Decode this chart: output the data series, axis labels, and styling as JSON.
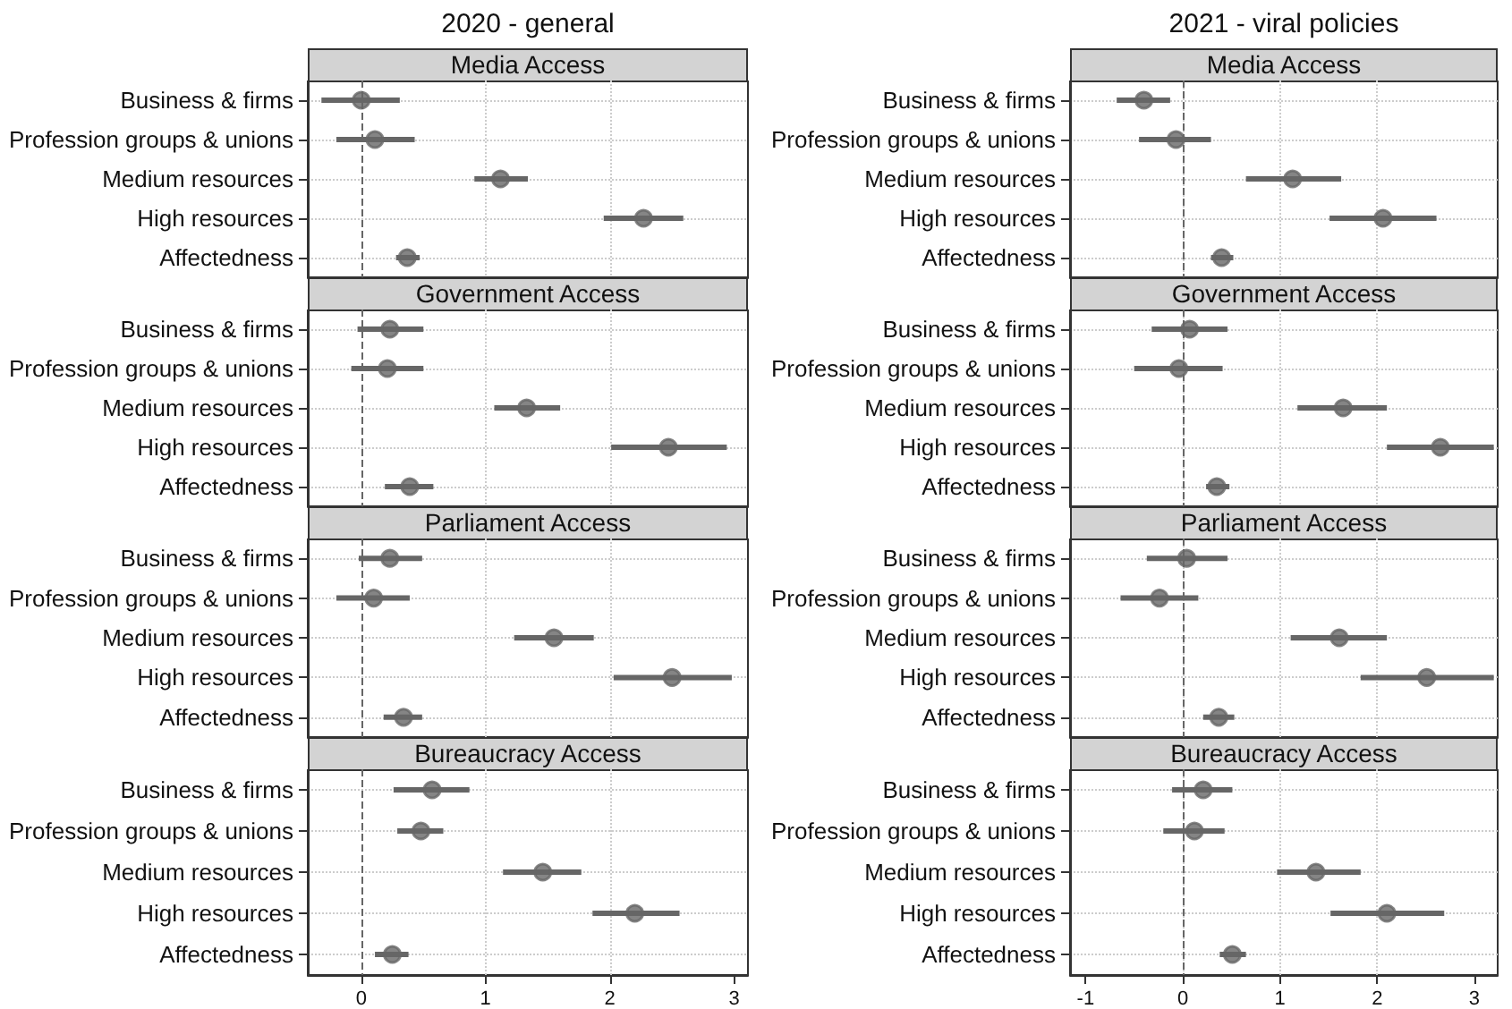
{
  "chart_data": [
    {
      "type": "scatter",
      "title": "2020 - general",
      "subtitle": "Media Access",
      "orientation": "horizontal",
      "categories": [
        "Business & firms",
        "Profession groups & unions",
        "Medium resources",
        "High resources",
        "Affectedness"
      ],
      "values": [
        0.0,
        0.11,
        1.12,
        2.27,
        0.37
      ],
      "errors": [
        [
          -0.32,
          0.31
        ],
        [
          -0.2,
          0.43
        ],
        [
          0.91,
          1.34
        ],
        [
          1.95,
          2.59
        ],
        [
          0.28,
          0.47
        ]
      ],
      "color": "#666666",
      "marker": "circle",
      "xlim": [
        -0.43,
        3.11
      ],
      "xticks": [
        0,
        1,
        2,
        3
      ],
      "tick_labels": "y",
      "grid": true,
      "ref_lines": [
        {
          "axis": "x",
          "value": 0,
          "line_style": "dashed",
          "color": "#666666"
        }
      ]
    },
    {
      "type": "scatter",
      "title": "2021 - viral policies",
      "subtitle": "Media Access",
      "orientation": "horizontal",
      "categories": [
        "Business & firms",
        "Profession groups & unions",
        "Medium resources",
        "High resources",
        "Affectedness"
      ],
      "values": [
        -0.4,
        -0.07,
        1.13,
        2.06,
        0.4
      ],
      "errors": [
        [
          -0.68,
          -0.13
        ],
        [
          -0.45,
          0.29
        ],
        [
          0.65,
          1.63
        ],
        [
          1.51,
          2.61
        ],
        [
          0.29,
          0.52
        ]
      ],
      "color": "#666666",
      "marker": "circle",
      "xlim": [
        -1.16,
        3.24
      ],
      "xticks": [
        -1,
        0,
        1,
        2,
        3
      ],
      "tick_labels": "y",
      "grid": true,
      "ref_lines": [
        {
          "axis": "x",
          "value": 0,
          "line_style": "dashed",
          "color": "#666666"
        }
      ]
    },
    {
      "type": "scatter",
      "title": "Government Access",
      "orientation": "horizontal",
      "categories": [
        "Business & firms",
        "Profession groups & unions",
        "Medium resources",
        "High resources",
        "Affectedness"
      ],
      "values": [
        0.23,
        0.21,
        1.33,
        2.47,
        0.39
      ],
      "errors": [
        [
          -0.03,
          0.5
        ],
        [
          -0.08,
          0.5
        ],
        [
          1.07,
          1.6
        ],
        [
          2.01,
          2.94
        ],
        [
          0.19,
          0.58
        ]
      ],
      "color": "#666666",
      "marker": "circle",
      "xlim": [
        -0.43,
        3.11
      ],
      "xticks": [
        0,
        1,
        2,
        3
      ],
      "tick_labels": "y",
      "grid": true,
      "ref_lines": [
        {
          "axis": "x",
          "value": 0,
          "line_style": "dashed",
          "color": "#666666"
        }
      ]
    },
    {
      "type": "scatter",
      "title": "Government Access",
      "orientation": "horizontal",
      "categories": [
        "Business & firms",
        "Profession groups & unions",
        "Medium resources",
        "High resources",
        "Affectedness"
      ],
      "values": [
        0.07,
        -0.04,
        1.65,
        2.65,
        0.35
      ],
      "errors": [
        [
          -0.32,
          0.46
        ],
        [
          -0.5,
          0.41
        ],
        [
          1.18,
          2.1
        ],
        [
          2.1,
          3.2
        ],
        [
          0.24,
          0.48
        ]
      ],
      "color": "#666666",
      "marker": "circle",
      "xlim": [
        -1.16,
        3.24
      ],
      "xticks": [
        -1,
        0,
        1,
        2,
        3
      ],
      "tick_labels": "y",
      "grid": true,
      "ref_lines": [
        {
          "axis": "x",
          "value": 0,
          "line_style": "dashed",
          "color": "#666666"
        }
      ]
    },
    {
      "type": "scatter",
      "title": "Parliament Access",
      "orientation": "horizontal",
      "categories": [
        "Business & firms",
        "Profession groups & unions",
        "Medium resources",
        "High resources",
        "Affectedness"
      ],
      "values": [
        0.23,
        0.1,
        1.55,
        2.5,
        0.34
      ],
      "errors": [
        [
          -0.02,
          0.49
        ],
        [
          -0.2,
          0.39
        ],
        [
          1.23,
          1.87
        ],
        [
          2.03,
          2.98
        ],
        [
          0.18,
          0.49
        ]
      ],
      "color": "#666666",
      "marker": "circle",
      "xlim": [
        -0.43,
        3.11
      ],
      "xticks": [
        0,
        1,
        2,
        3
      ],
      "tick_labels": "y",
      "grid": true,
      "ref_lines": [
        {
          "axis": "x",
          "value": 0,
          "line_style": "dashed",
          "color": "#666666"
        }
      ]
    },
    {
      "type": "scatter",
      "title": "Parliament Access",
      "orientation": "horizontal",
      "categories": [
        "Business & firms",
        "Profession groups & unions",
        "Medium resources",
        "High resources",
        "Affectedness"
      ],
      "values": [
        0.04,
        -0.24,
        1.61,
        2.51,
        0.37
      ],
      "errors": [
        [
          -0.37,
          0.46
        ],
        [
          -0.64,
          0.16
        ],
        [
          1.11,
          2.1
        ],
        [
          1.83,
          3.2
        ],
        [
          0.21,
          0.53
        ]
      ],
      "color": "#666666",
      "marker": "circle",
      "xlim": [
        -1.16,
        3.24
      ],
      "xticks": [
        -1,
        0,
        1,
        2,
        3
      ],
      "tick_labels": "y",
      "grid": true,
      "ref_lines": [
        {
          "axis": "x",
          "value": 0,
          "line_style": "dashed",
          "color": "#666666"
        }
      ]
    },
    {
      "type": "scatter",
      "title": "Bureaucracy Access",
      "orientation": "horizontal",
      "categories": [
        "Business & firms",
        "Profession groups & unions",
        "Medium resources",
        "High resources",
        "Affectedness"
      ],
      "values": [
        0.57,
        0.48,
        1.46,
        2.2,
        0.25
      ],
      "errors": [
        [
          0.26,
          0.87
        ],
        [
          0.29,
          0.66
        ],
        [
          1.14,
          1.77
        ],
        [
          1.86,
          2.56
        ],
        [
          0.11,
          0.38
        ]
      ],
      "color": "#666666",
      "marker": "circle",
      "xlim": [
        -0.43,
        3.11
      ],
      "xticks": [
        0,
        1,
        2,
        3
      ],
      "grid": true,
      "ref_lines": [
        {
          "axis": "x",
          "value": 0,
          "line_style": "dashed",
          "color": "#666666"
        }
      ]
    },
    {
      "type": "scatter",
      "title": "Bureaucracy Access",
      "orientation": "horizontal",
      "categories": [
        "Business & firms",
        "Profession groups & unions",
        "Medium resources",
        "High resources",
        "Affectedness"
      ],
      "values": [
        0.21,
        0.12,
        1.37,
        2.1,
        0.51
      ],
      "errors": [
        [
          -0.11,
          0.51
        ],
        [
          -0.2,
          0.43
        ],
        [
          0.97,
          1.83
        ],
        [
          1.52,
          2.69
        ],
        [
          0.38,
          0.65
        ]
      ],
      "color": "#666666",
      "marker": "circle",
      "xlim": [
        -1.16,
        3.24
      ],
      "xticks": [
        -1,
        0,
        1,
        2,
        3
      ],
      "grid": true,
      "ref_lines": [
        {
          "axis": "x",
          "value": 0,
          "line_style": "dashed",
          "color": "#666666"
        }
      ]
    }
  ]
}
